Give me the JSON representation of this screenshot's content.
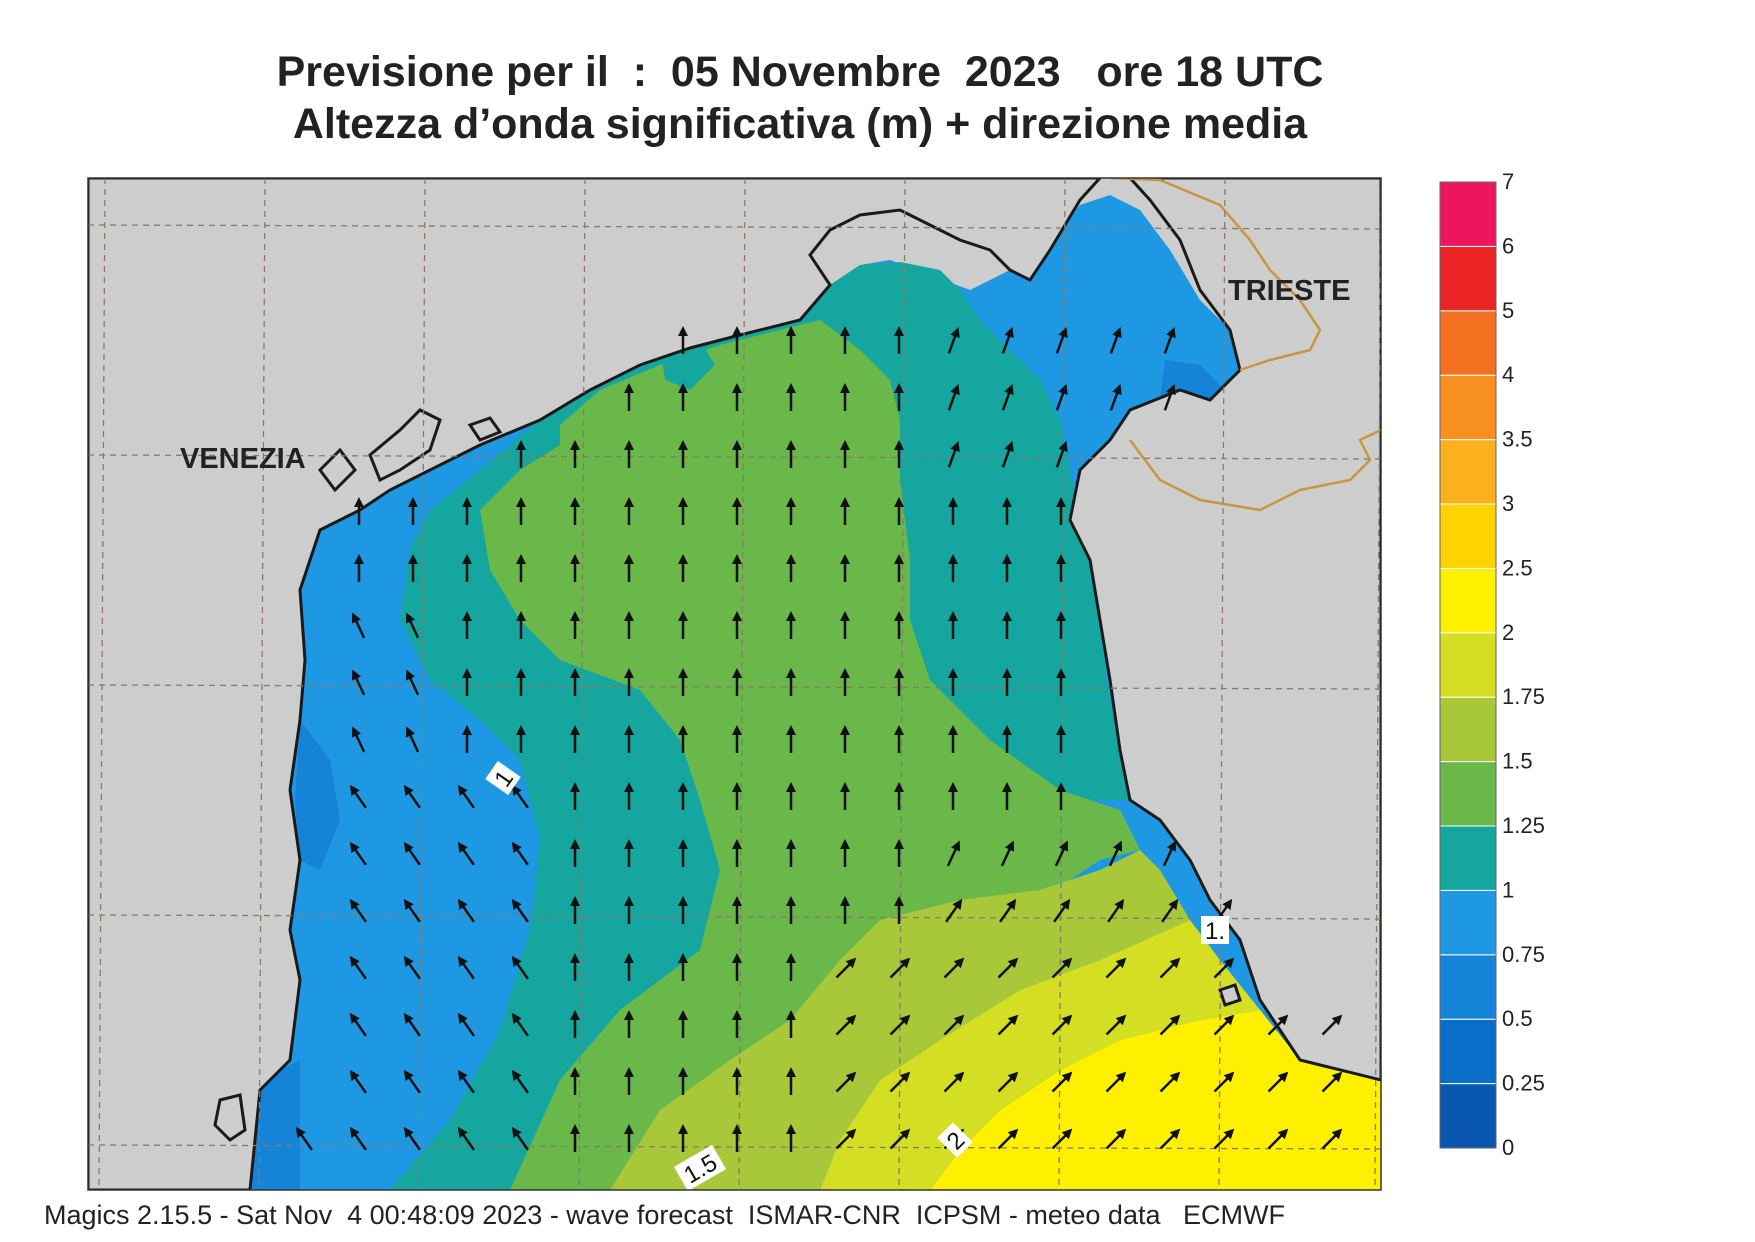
{
  "title": {
    "line1": "Previsione per il  :  05 Novembre  2023   ore 18 UTC",
    "line2": "Altezza d’onda significativa (m) + direzione media"
  },
  "footer": "Magics 2.15.5 - Sat Nov  4 00:48:09 2023 - wave forecast  ISMAR-CNR  ICPSM - meteo data   ECMWF",
  "cities": [
    {
      "name": "VENEZIA"
    },
    {
      "name": "TRIESTE"
    }
  ],
  "contour_labels": [
    "1",
    "1.5",
    "2",
    "1."
  ],
  "colorbar": {
    "units": "m",
    "levels": [
      {
        "label": "0",
        "color": "#0a57b0"
      },
      {
        "label": "0.25",
        "color": "#0a6fc8"
      },
      {
        "label": "0.5",
        "color": "#1583d8"
      },
      {
        "label": "0.75",
        "color": "#1e98e2"
      },
      {
        "label": "1",
        "color": "#15a79f"
      },
      {
        "label": "1.25",
        "color": "#6ab84a"
      },
      {
        "label": "1.5",
        "color": "#a8c83a"
      },
      {
        "label": "1.75",
        "color": "#d4de22"
      },
      {
        "label": "2",
        "color": "#fff000"
      },
      {
        "label": "2.5",
        "color": "#ffd200"
      },
      {
        "label": "3",
        "color": "#fbb01e"
      },
      {
        "label": "3.5",
        "color": "#f7901e"
      },
      {
        "label": "4",
        "color": "#f37021"
      },
      {
        "label": "5",
        "color": "#ed2424"
      },
      {
        "label": "6",
        "color": "#ed1560"
      },
      {
        "label": "7",
        "color": ""
      }
    ]
  },
  "colors": {
    "land": "#cdcdcd",
    "coastline": "#1a1a1a",
    "border": "#c8963c",
    "grid": "#8a7a6a",
    "arrow": "#111111"
  }
}
